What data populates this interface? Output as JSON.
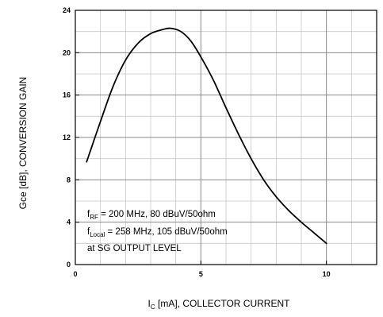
{
  "chart_data": {
    "type": "line",
    "xlabel_prefix": "I",
    "xlabel_sub": "C",
    "xlabel_suffix": " [mA], COLLECTOR CURRENT",
    "ylabel": "Gce [dB], CONVERSION GAIN",
    "xlim": [
      0,
      12
    ],
    "ylim": [
      0,
      24
    ],
    "x_ticks": [
      0,
      5,
      10
    ],
    "y_ticks": [
      0,
      4,
      8,
      12,
      16,
      20,
      24
    ],
    "x_grid_major": [
      5,
      10
    ],
    "x_grid_minor": [
      1,
      2,
      3,
      4,
      6,
      7,
      8,
      9,
      11
    ],
    "y_grid_major": [
      4,
      8,
      12,
      16,
      20
    ],
    "y_grid_minor": [
      2,
      6,
      10,
      14,
      18,
      22
    ],
    "series": [
      {
        "x": [
          0.45,
          1.0,
          1.5,
          2.0,
          2.5,
          3.0,
          3.5,
          3.8,
          4.2,
          4.6,
          5.0,
          5.5,
          6.0,
          6.5,
          7.0,
          7.5,
          8.0,
          8.5,
          9.0,
          9.5,
          10.0
        ],
        "y": [
          9.7,
          13.5,
          16.8,
          19.3,
          20.9,
          21.8,
          22.2,
          22.3,
          22.0,
          21.1,
          19.6,
          17.4,
          14.8,
          12.3,
          10.0,
          8.0,
          6.4,
          5.1,
          4.0,
          3.0,
          2.0
        ]
      }
    ],
    "annotations": [
      {
        "sym": "f",
        "sub": "RF",
        "rest": " = 200 MHz, 80 dBuV/50ohm"
      },
      {
        "sym": "f",
        "sub": "Local",
        "rest": " = 258 MHz, 105 dBuV/50ohm"
      },
      {
        "sym": "",
        "sub": "",
        "rest": "at SG OUTPUT LEVEL"
      }
    ],
    "grid": true,
    "line_color": "#000000"
  }
}
